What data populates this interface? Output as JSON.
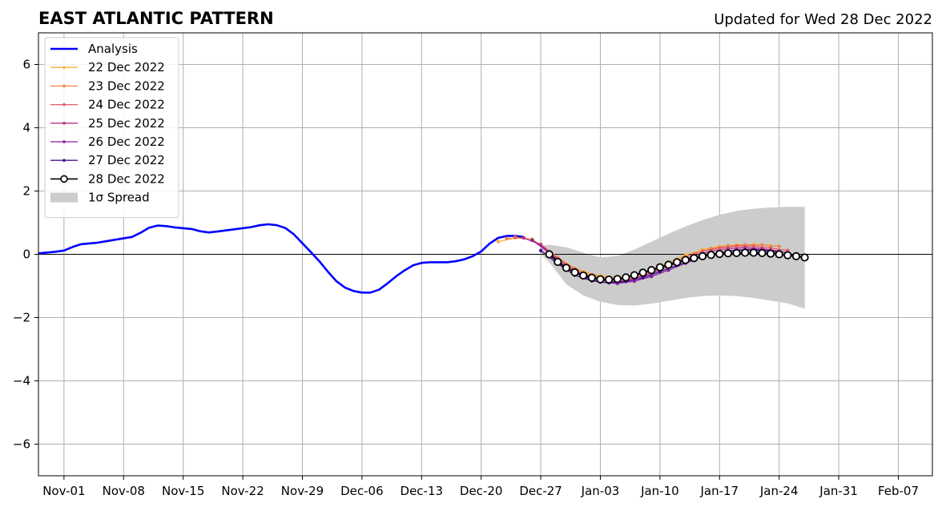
{
  "chart_data": {
    "type": "line",
    "title": "EAST ATLANTIC PATTERN",
    "subtitle": "Updated for Wed 28 Dec 2022",
    "xlabel": "",
    "ylabel": "",
    "ylim": [
      -7,
      7
    ],
    "xlim": [
      "2022-10-29",
      "2023-02-11"
    ],
    "grid": true,
    "legend_position": "top-left",
    "x_tick_labels": [
      "Nov-01",
      "Nov-08",
      "Nov-15",
      "Nov-22",
      "Nov-29",
      "Dec-06",
      "Dec-13",
      "Dec-20",
      "Dec-27",
      "Jan-03",
      "Jan-10",
      "Jan-17",
      "Jan-24",
      "Jan-31",
      "Feb-07"
    ],
    "x_tick_dates": [
      "2022-11-01",
      "2022-11-08",
      "2022-11-15",
      "2022-11-22",
      "2022-11-29",
      "2022-12-06",
      "2022-12-13",
      "2022-12-20",
      "2022-12-27",
      "2023-01-03",
      "2023-01-10",
      "2023-01-17",
      "2023-01-24",
      "2023-01-31",
      "2023-02-07"
    ],
    "y_ticks": [
      6,
      4,
      2,
      0,
      -2,
      -4,
      -6
    ],
    "y_tick_labels": [
      "6",
      "4",
      "2",
      "0",
      "−2",
      "−4",
      "−6"
    ],
    "analysis": {
      "name": "Analysis",
      "color": "#0000ff",
      "x": [
        "2022-10-29",
        "2022-10-31",
        "2022-11-01",
        "2022-11-02",
        "2022-11-03",
        "2022-11-05",
        "2022-11-07",
        "2022-11-09",
        "2022-11-10",
        "2022-11-11",
        "2022-11-12",
        "2022-11-13",
        "2022-11-14",
        "2022-11-16",
        "2022-11-17",
        "2022-11-18",
        "2022-11-19",
        "2022-11-21",
        "2022-11-23",
        "2022-11-24",
        "2022-11-25",
        "2022-11-26",
        "2022-11-27",
        "2022-11-28",
        "2022-11-29",
        "2022-11-30",
        "2022-12-01",
        "2022-12-02",
        "2022-12-03",
        "2022-12-04",
        "2022-12-05",
        "2022-12-06",
        "2022-12-07",
        "2022-12-08",
        "2022-12-09",
        "2022-12-10",
        "2022-12-11",
        "2022-12-12",
        "2022-12-13",
        "2022-12-14",
        "2022-12-15",
        "2022-12-16",
        "2022-12-17",
        "2022-12-18",
        "2022-12-19",
        "2022-12-20",
        "2022-12-21",
        "2022-12-22",
        "2022-12-23",
        "2022-12-24",
        "2022-12-25"
      ],
      "y": [
        0.03,
        0.08,
        0.12,
        0.23,
        0.32,
        0.37,
        0.46,
        0.55,
        0.68,
        0.84,
        0.91,
        0.89,
        0.85,
        0.8,
        0.73,
        0.69,
        0.72,
        0.79,
        0.86,
        0.92,
        0.95,
        0.92,
        0.83,
        0.63,
        0.35,
        0.07,
        -0.22,
        -0.55,
        -0.85,
        -1.05,
        -1.16,
        -1.21,
        -1.21,
        -1.12,
        -0.92,
        -0.7,
        -0.51,
        -0.35,
        -0.27,
        -0.25,
        -0.25,
        -0.25,
        -0.22,
        -0.16,
        -0.06,
        0.09,
        0.34,
        0.52,
        0.58,
        0.58,
        0.55
      ]
    },
    "spread": {
      "name": "1σ Spread",
      "color": "#cccccc",
      "x": [
        "2022-12-27",
        "2022-12-28",
        "2022-12-30",
        "2023-01-01",
        "2023-01-03",
        "2023-01-05",
        "2023-01-07",
        "2023-01-09",
        "2023-01-11",
        "2023-01-13",
        "2023-01-15",
        "2023-01-17",
        "2023-01-19",
        "2023-01-21",
        "2023-01-23",
        "2023-01-25",
        "2023-01-27"
      ],
      "upper": [
        0.28,
        0.3,
        0.22,
        0.05,
        -0.1,
        -0.05,
        0.15,
        0.4,
        0.65,
        0.88,
        1.08,
        1.25,
        1.37,
        1.44,
        1.48,
        1.5,
        1.5
      ],
      "lower": [
        0.0,
        -0.25,
        -0.95,
        -1.3,
        -1.5,
        -1.6,
        -1.62,
        -1.56,
        -1.47,
        -1.38,
        -1.32,
        -1.3,
        -1.32,
        -1.38,
        -1.46,
        -1.55,
        -1.72
      ]
    },
    "forecasts": [
      {
        "name": "22 Dec 2022",
        "color": "#f7b13a",
        "x": [
          "2022-12-22",
          "2022-12-24",
          "2022-12-26",
          "2022-12-28",
          "2022-12-30",
          "2023-01-01",
          "2023-01-03",
          "2023-01-05",
          "2023-01-07",
          "2023-01-09",
          "2023-01-11",
          "2023-01-13",
          "2023-01-15",
          "2023-01-17",
          "2023-01-19",
          "2023-01-21",
          "2023-01-23"
        ],
        "y": [
          0.4,
          0.52,
          0.48,
          0.1,
          -0.3,
          -0.55,
          -0.68,
          -0.72,
          -0.65,
          -0.48,
          -0.25,
          -0.02,
          0.15,
          0.25,
          0.3,
          0.31,
          0.28
        ]
      },
      {
        "name": "23 Dec 2022",
        "color": "#f2844b",
        "x": [
          "2022-12-23",
          "2022-12-25",
          "2022-12-27",
          "2022-12-29",
          "2022-12-31",
          "2023-01-02",
          "2023-01-04",
          "2023-01-06",
          "2023-01-08",
          "2023-01-10",
          "2023-01-12",
          "2023-01-14",
          "2023-01-16",
          "2023-01-18",
          "2023-01-20",
          "2023-01-22",
          "2023-01-24"
        ],
        "y": [
          0.5,
          0.52,
          0.32,
          -0.1,
          -0.45,
          -0.66,
          -0.76,
          -0.78,
          -0.66,
          -0.46,
          -0.22,
          0.02,
          0.18,
          0.27,
          0.3,
          0.3,
          0.25
        ]
      },
      {
        "name": "24 Dec 2022",
        "color": "#e45c64",
        "x": [
          "2022-12-24",
          "2022-12-26",
          "2022-12-28",
          "2022-12-30",
          "2023-01-01",
          "2023-01-03",
          "2023-01-05",
          "2023-01-07",
          "2023-01-09",
          "2023-01-11",
          "2023-01-13",
          "2023-01-15",
          "2023-01-17",
          "2023-01-19",
          "2023-01-21",
          "2023-01-23",
          "2023-01-25"
        ],
        "y": [
          0.55,
          0.44,
          0.05,
          -0.35,
          -0.62,
          -0.78,
          -0.82,
          -0.75,
          -0.55,
          -0.32,
          -0.08,
          0.1,
          0.2,
          0.26,
          0.26,
          0.2,
          0.12
        ]
      },
      {
        "name": "25 Dec 2022",
        "color": "#b83289",
        "x": [
          "2022-12-25",
          "2022-12-27",
          "2022-12-29",
          "2022-12-31",
          "2023-01-02",
          "2023-01-04",
          "2023-01-06",
          "2023-01-08",
          "2023-01-10",
          "2023-01-12",
          "2023-01-14",
          "2023-01-16",
          "2023-01-18",
          "2023-01-20",
          "2023-01-22",
          "2023-01-24"
        ],
        "y": [
          0.52,
          0.3,
          -0.15,
          -0.52,
          -0.76,
          -0.86,
          -0.84,
          -0.7,
          -0.5,
          -0.27,
          -0.05,
          0.1,
          0.18,
          0.21,
          0.18,
          0.1
        ]
      },
      {
        "name": "26 Dec 2022",
        "color": "#8a1ea8",
        "x": [
          "2022-12-26",
          "2022-12-28",
          "2022-12-30",
          "2023-01-01",
          "2023-01-03",
          "2023-01-05",
          "2023-01-07",
          "2023-01-09",
          "2023-01-11",
          "2023-01-13",
          "2023-01-15",
          "2023-01-17",
          "2023-01-19",
          "2023-01-21",
          "2023-01-23",
          "2023-01-25"
        ],
        "y": [
          0.45,
          0.05,
          -0.42,
          -0.72,
          -0.88,
          -0.92,
          -0.85,
          -0.7,
          -0.5,
          -0.28,
          -0.08,
          0.06,
          0.14,
          0.16,
          0.12,
          0.05
        ]
      },
      {
        "name": "27 Dec 2022",
        "color": "#4b0e8f",
        "x": [
          "2022-12-27",
          "2022-12-29",
          "2022-12-31",
          "2023-01-02",
          "2023-01-04",
          "2023-01-06",
          "2023-01-08",
          "2023-01-10",
          "2023-01-12",
          "2023-01-14",
          "2023-01-16",
          "2023-01-18",
          "2023-01-20",
          "2023-01-22",
          "2023-01-24"
        ],
        "y": [
          0.12,
          -0.3,
          -0.66,
          -0.84,
          -0.9,
          -0.86,
          -0.74,
          -0.55,
          -0.35,
          -0.15,
          0.0,
          0.1,
          0.14,
          0.12,
          0.06
        ]
      },
      {
        "name": "28 Dec 2022",
        "color": "#000000",
        "x": [
          "2022-12-28",
          "2022-12-29",
          "2022-12-30",
          "2022-12-31",
          "2023-01-01",
          "2023-01-02",
          "2023-01-03",
          "2023-01-04",
          "2023-01-05",
          "2023-01-06",
          "2023-01-07",
          "2023-01-08",
          "2023-01-09",
          "2023-01-10",
          "2023-01-11",
          "2023-01-12",
          "2023-01-13",
          "2023-01-14",
          "2023-01-15",
          "2023-01-16",
          "2023-01-17",
          "2023-01-18",
          "2023-01-19",
          "2023-01-20",
          "2023-01-21",
          "2023-01-22",
          "2023-01-23",
          "2023-01-24",
          "2023-01-25",
          "2023-01-26",
          "2023-01-27"
        ],
        "y": [
          0.0,
          -0.24,
          -0.43,
          -0.57,
          -0.67,
          -0.74,
          -0.79,
          -0.8,
          -0.78,
          -0.73,
          -0.66,
          -0.58,
          -0.5,
          -0.41,
          -0.33,
          -0.25,
          -0.18,
          -0.12,
          -0.06,
          -0.02,
          0.01,
          0.03,
          0.04,
          0.05,
          0.05,
          0.04,
          0.02,
          0.0,
          -0.03,
          -0.06,
          -0.1
        ]
      }
    ]
  }
}
